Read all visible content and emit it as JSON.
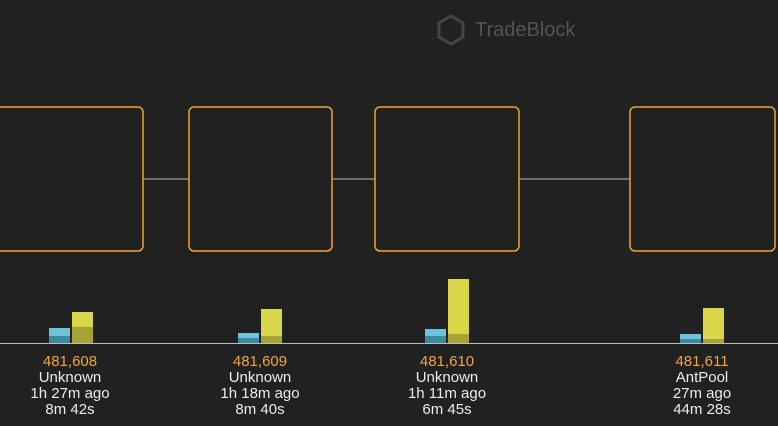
{
  "header": {
    "logo": "TradeBlock"
  },
  "blocks": [
    {
      "height": "481,608",
      "miner": "Unknown",
      "age": "1h 27m ago",
      "duration": "8m 42s"
    },
    {
      "height": "481,609",
      "miner": "Unknown",
      "age": "1h 18m ago",
      "duration": "8m 40s"
    },
    {
      "height": "481,610",
      "miner": "Unknown",
      "age": "1h 11m ago",
      "duration": "6m 45s"
    },
    {
      "height": "481,611",
      "miner": "AntPool",
      "age": "27m ago",
      "duration": "44m 28s"
    }
  ]
}
